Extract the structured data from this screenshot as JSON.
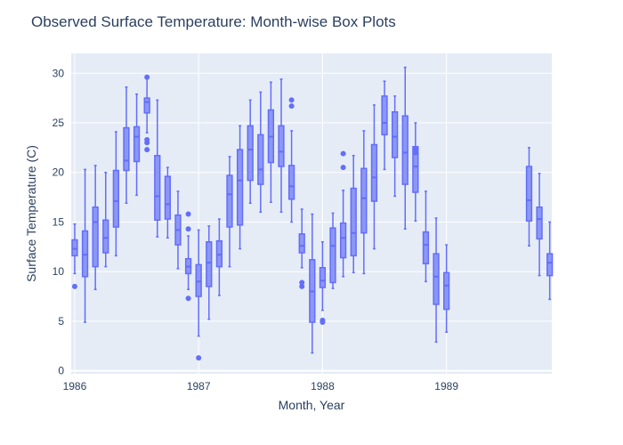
{
  "chart_data": {
    "type": "box",
    "title": "Observed Surface Temperature: Month-wise Box Plots",
    "xlabel": "Month, Year",
    "ylabel": "Surface Temperature (C)",
    "x_range": [
      "1986-01",
      "1989-11"
    ],
    "ylim": [
      -0.3,
      32
    ],
    "x_ticks": [
      "1986",
      "1987",
      "1988",
      "1989"
    ],
    "y_ticks": [
      0,
      5,
      10,
      15,
      20,
      25,
      30
    ],
    "grid": true,
    "legend": "none",
    "colors": {
      "fill": "#8c96f5",
      "line": "#636efa",
      "plot_bg": "#e5ecf6",
      "grid": "#ffffff"
    },
    "series": [
      {
        "boxes": [
          {
            "month": "1986-01",
            "q1": 11.6,
            "median": 12.3,
            "q3": 13.2,
            "low": 9.8,
            "high": 14.8,
            "outliers": [
              8.5
            ]
          },
          {
            "month": "1986-02",
            "q1": 9.5,
            "median": 11.7,
            "q3": 14.1,
            "low": 4.9,
            "high": 20.3,
            "outliers": []
          },
          {
            "month": "1986-03",
            "q1": 10.5,
            "median": 15.0,
            "q3": 16.5,
            "low": 8.2,
            "high": 20.7,
            "outliers": []
          },
          {
            "month": "1986-04",
            "q1": 11.9,
            "median": 13.4,
            "q3": 15.2,
            "low": 10.5,
            "high": 20.0,
            "outliers": []
          },
          {
            "month": "1986-05",
            "q1": 14.5,
            "median": 17.1,
            "q3": 20.2,
            "low": 11.6,
            "high": 24.1,
            "outliers": []
          },
          {
            "month": "1986-06",
            "q1": 20.2,
            "median": 21.2,
            "q3": 24.5,
            "low": 16.9,
            "high": 28.6,
            "outliers": []
          },
          {
            "month": "1986-07",
            "q1": 21.1,
            "median": 23.6,
            "q3": 24.6,
            "low": 17.7,
            "high": 27.9,
            "outliers": []
          },
          {
            "month": "1986-08",
            "q1": 26.0,
            "median": 27.1,
            "q3": 27.5,
            "low": 24.0,
            "high": 29.6,
            "outliers": [
              23.3,
              23.0,
              22.3,
              29.6
            ]
          },
          {
            "month": "1986-09",
            "q1": 15.2,
            "median": 17.6,
            "q3": 21.7,
            "low": 13.5,
            "high": 27.3,
            "outliers": []
          },
          {
            "month": "1986-10",
            "q1": 15.3,
            "median": 16.8,
            "q3": 19.6,
            "low": 13.4,
            "high": 20.5,
            "outliers": []
          },
          {
            "month": "1986-11",
            "q1": 12.7,
            "median": 14.2,
            "q3": 15.7,
            "low": 10.3,
            "high": 18.1,
            "outliers": []
          },
          {
            "month": "1986-12",
            "q1": 9.8,
            "median": 10.5,
            "q3": 11.3,
            "low": 8.2,
            "high": 13.6,
            "outliers": [
              15.8,
              14.3,
              7.3
            ]
          },
          {
            "month": "1987-01",
            "q1": 7.5,
            "median": 9.0,
            "q3": 10.7,
            "low": 3.5,
            "high": 14.2,
            "outliers": [
              1.3
            ]
          },
          {
            "month": "1987-02",
            "q1": 8.5,
            "median": 10.9,
            "q3": 13.0,
            "low": 5.2,
            "high": 14.6,
            "outliers": []
          },
          {
            "month": "1987-03",
            "q1": 10.5,
            "median": 11.7,
            "q3": 13.1,
            "low": 7.6,
            "high": 15.3,
            "outliers": []
          },
          {
            "month": "1987-04",
            "q1": 14.5,
            "median": 17.8,
            "q3": 19.7,
            "low": 10.5,
            "high": 21.6,
            "outliers": []
          },
          {
            "month": "1987-05",
            "q1": 14.7,
            "median": 19.2,
            "q3": 22.3,
            "low": 12.3,
            "high": 24.7,
            "outliers": []
          },
          {
            "month": "1987-06",
            "q1": 19.2,
            "median": 22.3,
            "q3": 24.7,
            "low": 16.9,
            "high": 27.3,
            "outliers": []
          },
          {
            "month": "1987-07",
            "q1": 18.8,
            "median": 20.3,
            "q3": 23.8,
            "low": 16.0,
            "high": 28.1,
            "outliers": []
          },
          {
            "month": "1987-08",
            "q1": 21.0,
            "median": 23.6,
            "q3": 26.3,
            "low": 17.0,
            "high": 29.1,
            "outliers": []
          },
          {
            "month": "1987-09",
            "q1": 20.6,
            "median": 22.1,
            "q3": 24.7,
            "low": 16.0,
            "high": 29.4,
            "outliers": []
          },
          {
            "month": "1987-10",
            "q1": 17.3,
            "median": 18.6,
            "q3": 20.7,
            "low": 15.0,
            "high": 24.2,
            "outliers": [
              27.3,
              26.7
            ]
          },
          {
            "month": "1987-11",
            "q1": 11.9,
            "median": 12.6,
            "q3": 13.8,
            "low": 10.4,
            "high": 16.3,
            "outliers": [
              8.9,
              8.5
            ]
          },
          {
            "month": "1987-12",
            "q1": 4.9,
            "median": 8.0,
            "q3": 11.2,
            "low": 1.8,
            "high": 15.8,
            "outliers": []
          },
          {
            "month": "1988-01",
            "q1": 8.4,
            "median": 9.1,
            "q3": 10.4,
            "low": 6.1,
            "high": 13.0,
            "outliers": [
              5.1,
              4.9
            ]
          },
          {
            "month": "1988-02",
            "q1": 8.9,
            "median": 12.6,
            "q3": 14.4,
            "low": 8.3,
            "high": 15.9,
            "outliers": []
          },
          {
            "month": "1988-03",
            "q1": 11.4,
            "median": 13.4,
            "q3": 14.9,
            "low": 9.5,
            "high": 18.2,
            "outliers": [
              21.9,
              20.5
            ]
          },
          {
            "month": "1988-04",
            "q1": 11.6,
            "median": 13.9,
            "q3": 18.4,
            "low": 9.9,
            "high": 21.7,
            "outliers": []
          },
          {
            "month": "1988-05",
            "q1": 13.9,
            "median": 17.4,
            "q3": 20.4,
            "low": 9.8,
            "high": 24.2,
            "outliers": []
          },
          {
            "month": "1988-06",
            "q1": 17.1,
            "median": 19.5,
            "q3": 22.8,
            "low": 12.3,
            "high": 26.8,
            "outliers": []
          },
          {
            "month": "1988-07",
            "q1": 23.8,
            "median": 25.0,
            "q3": 27.7,
            "low": 20.3,
            "high": 29.2,
            "outliers": []
          },
          {
            "month": "1988-08",
            "q1": 21.5,
            "median": 23.6,
            "q3": 26.1,
            "low": 17.6,
            "high": 27.7,
            "outliers": []
          },
          {
            "month": "1988-09",
            "q1": 18.8,
            "median": 22.0,
            "q3": 25.7,
            "low": 14.3,
            "high": 30.6,
            "outliers": []
          },
          {
            "month": "1988-10",
            "q1": 18.0,
            "median": 20.6,
            "q3": 22.6,
            "low": 15.1,
            "high": 25.0,
            "outliers": [
              22.3,
              22.0
            ]
          },
          {
            "month": "1988-11",
            "q1": 10.8,
            "median": 12.7,
            "q3": 14.0,
            "low": 9.0,
            "high": 18.1,
            "outliers": []
          },
          {
            "month": "1988-12",
            "q1": 6.7,
            "median": 9.5,
            "q3": 11.8,
            "low": 2.9,
            "high": 15.4,
            "outliers": []
          },
          {
            "month": "1989-01",
            "q1": 6.2,
            "median": 8.6,
            "q3": 9.9,
            "low": 3.9,
            "high": 12.7,
            "outliers": []
          },
          {
            "month": "1989-09",
            "q1": 15.1,
            "median": 17.2,
            "q3": 20.6,
            "low": 12.6,
            "high": 22.5,
            "outliers": []
          },
          {
            "month": "1989-10",
            "q1": 13.3,
            "median": 15.3,
            "q3": 16.5,
            "low": 9.6,
            "high": 19.9,
            "outliers": []
          },
          {
            "month": "1989-11",
            "q1": 9.6,
            "median": 10.9,
            "q3": 11.8,
            "low": 7.2,
            "high": 15.0,
            "outliers": []
          }
        ]
      }
    ]
  }
}
